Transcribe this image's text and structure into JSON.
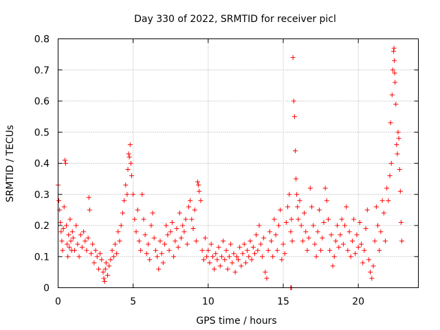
{
  "chart_data": {
    "type": "scatter",
    "title": "Day 330 of 2022, SRMTID for receiver picl",
    "xlabel": "GPS time / hours",
    "ylabel": "SRMTID / TECUs",
    "xlim": [
      0,
      24
    ],
    "ylim": [
      0,
      0.8
    ],
    "xticks": [
      0,
      5,
      10,
      15,
      20
    ],
    "yticks": [
      0,
      0.1,
      0.2,
      0.3,
      0.4,
      0.5,
      0.6,
      0.7,
      0.8
    ],
    "xtick_labels": [
      "0",
      "5",
      "10",
      "15",
      "20"
    ],
    "ytick_labels": [
      "0",
      "0.1",
      "0.2",
      "0.3",
      "0.4",
      "0.5",
      "0.6",
      "0.7",
      "0.8"
    ],
    "grid": true,
    "marker": "+",
    "color": "#ff0000",
    "series": [
      {
        "name": "SRMTID",
        "points": [
          [
            0.0,
            0.33
          ],
          [
            0.05,
            0.28
          ],
          [
            0.1,
            0.25
          ],
          [
            0.15,
            0.21
          ],
          [
            0.2,
            0.18
          ],
          [
            0.25,
            0.15
          ],
          [
            0.3,
            0.12
          ],
          [
            0.35,
            0.19
          ],
          [
            0.4,
            0.26
          ],
          [
            0.45,
            0.41
          ],
          [
            0.5,
            0.4
          ],
          [
            0.55,
            0.2
          ],
          [
            0.6,
            0.14
          ],
          [
            0.65,
            0.1
          ],
          [
            0.7,
            0.17
          ],
          [
            0.75,
            0.13
          ],
          [
            0.8,
            0.22
          ],
          [
            0.85,
            0.15
          ],
          [
            0.9,
            0.12
          ],
          [
            0.95,
            0.18
          ],
          [
            1.0,
            0.16
          ],
          [
            1.1,
            0.12
          ],
          [
            1.2,
            0.2
          ],
          [
            1.3,
            0.14
          ],
          [
            1.4,
            0.1
          ],
          [
            1.5,
            0.17
          ],
          [
            1.6,
            0.13
          ],
          [
            1.7,
            0.18
          ],
          [
            1.8,
            0.15
          ],
          [
            1.9,
            0.12
          ],
          [
            2.0,
            0.16
          ],
          [
            2.05,
            0.29
          ],
          [
            2.1,
            0.25
          ],
          [
            2.2,
            0.11
          ],
          [
            2.3,
            0.14
          ],
          [
            2.4,
            0.08
          ],
          [
            2.5,
            0.12
          ],
          [
            2.6,
            0.1
          ],
          [
            2.7,
            0.06
          ],
          [
            2.8,
            0.11
          ],
          [
            2.9,
            0.09
          ],
          [
            3.0,
            0.05
          ],
          [
            3.05,
            0.03
          ],
          [
            3.1,
            0.02
          ],
          [
            3.15,
            0.06
          ],
          [
            3.2,
            0.08
          ],
          [
            3.3,
            0.04
          ],
          [
            3.4,
            0.07
          ],
          [
            3.5,
            0.09
          ],
          [
            3.6,
            0.12
          ],
          [
            3.7,
            0.1
          ],
          [
            3.8,
            0.14
          ],
          [
            3.9,
            0.11
          ],
          [
            4.0,
            0.18
          ],
          [
            4.1,
            0.15
          ],
          [
            4.2,
            0.2
          ],
          [
            4.3,
            0.24
          ],
          [
            4.4,
            0.28
          ],
          [
            4.5,
            0.33
          ],
          [
            4.6,
            0.3
          ],
          [
            4.65,
            0.38
          ],
          [
            4.7,
            0.43
          ],
          [
            4.75,
            0.42
          ],
          [
            4.8,
            0.46
          ],
          [
            4.85,
            0.4
          ],
          [
            4.9,
            0.36
          ],
          [
            5.0,
            0.3
          ],
          [
            5.1,
            0.22
          ],
          [
            5.2,
            0.18
          ],
          [
            5.3,
            0.25
          ],
          [
            5.4,
            0.15
          ],
          [
            5.5,
            0.12
          ],
          [
            5.6,
            0.3
          ],
          [
            5.7,
            0.22
          ],
          [
            5.8,
            0.17
          ],
          [
            5.9,
            0.11
          ],
          [
            6.0,
            0.14
          ],
          [
            6.1,
            0.09
          ],
          [
            6.2,
            0.2
          ],
          [
            6.3,
            0.24
          ],
          [
            6.4,
            0.16
          ],
          [
            6.5,
            0.12
          ],
          [
            6.6,
            0.1
          ],
          [
            6.7,
            0.06
          ],
          [
            6.8,
            0.15
          ],
          [
            6.9,
            0.11
          ],
          [
            7.0,
            0.08
          ],
          [
            7.1,
            0.14
          ],
          [
            7.2,
            0.2
          ],
          [
            7.3,
            0.17
          ],
          [
            7.4,
            0.12
          ],
          [
            7.5,
            0.18
          ],
          [
            7.6,
            0.21
          ],
          [
            7.7,
            0.1
          ],
          [
            7.8,
            0.15
          ],
          [
            7.9,
            0.19
          ],
          [
            8.0,
            0.13
          ],
          [
            8.1,
            0.24
          ],
          [
            8.2,
            0.16
          ],
          [
            8.3,
            0.2
          ],
          [
            8.4,
            0.18
          ],
          [
            8.5,
            0.22
          ],
          [
            8.6,
            0.14
          ],
          [
            8.7,
            0.26
          ],
          [
            8.8,
            0.28
          ],
          [
            8.9,
            0.22
          ],
          [
            9.0,
            0.19
          ],
          [
            9.1,
            0.25
          ],
          [
            9.2,
            0.15
          ],
          [
            9.3,
            0.34
          ],
          [
            9.35,
            0.33
          ],
          [
            9.4,
            0.31
          ],
          [
            9.5,
            0.28
          ],
          [
            9.6,
            0.12
          ],
          [
            9.7,
            0.09
          ],
          [
            9.8,
            0.16
          ],
          [
            9.9,
            0.1
          ],
          [
            10.0,
            0.12
          ],
          [
            10.1,
            0.08
          ],
          [
            10.2,
            0.14
          ],
          [
            10.3,
            0.1
          ],
          [
            10.4,
            0.06
          ],
          [
            10.5,
            0.11
          ],
          [
            10.6,
            0.09
          ],
          [
            10.7,
            0.13
          ],
          [
            10.8,
            0.07
          ],
          [
            10.9,
            0.1
          ],
          [
            11.0,
            0.15
          ],
          [
            11.1,
            0.09
          ],
          [
            11.2,
            0.12
          ],
          [
            11.3,
            0.06
          ],
          [
            11.4,
            0.1
          ],
          [
            11.5,
            0.14
          ],
          [
            11.6,
            0.08
          ],
          [
            11.7,
            0.11
          ],
          [
            11.8,
            0.05
          ],
          [
            11.9,
            0.1
          ],
          [
            12.0,
            0.09
          ],
          [
            12.1,
            0.13
          ],
          [
            12.2,
            0.07
          ],
          [
            12.3,
            0.11
          ],
          [
            12.4,
            0.14
          ],
          [
            12.5,
            0.08
          ],
          [
            12.6,
            0.12
          ],
          [
            12.7,
            0.1
          ],
          [
            12.8,
            0.15
          ],
          [
            12.9,
            0.09
          ],
          [
            13.0,
            0.13
          ],
          [
            13.1,
            0.11
          ],
          [
            13.2,
            0.17
          ],
          [
            13.3,
            0.12
          ],
          [
            13.4,
            0.2
          ],
          [
            13.5,
            0.14
          ],
          [
            13.6,
            0.1
          ],
          [
            13.7,
            0.16
          ],
          [
            13.8,
            0.05
          ],
          [
            13.9,
            0.03
          ],
          [
            14.0,
            0.12
          ],
          [
            14.1,
            0.18
          ],
          [
            14.2,
            0.15
          ],
          [
            14.3,
            0.1
          ],
          [
            14.4,
            0.22
          ],
          [
            14.5,
            0.17
          ],
          [
            14.6,
            0.12
          ],
          [
            14.7,
            0.2
          ],
          [
            14.8,
            0.25
          ],
          [
            14.9,
            0.09
          ],
          [
            15.0,
            0.14
          ],
          [
            15.1,
            0.11
          ],
          [
            15.2,
            0.21
          ],
          [
            15.3,
            0.26
          ],
          [
            15.4,
            0.3
          ],
          [
            15.5,
            0.18
          ],
          [
            15.55,
            0.22
          ],
          [
            15.6,
            0.15
          ],
          [
            15.65,
            0.74
          ],
          [
            15.7,
            0.6
          ],
          [
            15.75,
            0.55
          ],
          [
            15.8,
            0.44
          ],
          [
            15.85,
            0.35
          ],
          [
            15.9,
            0.3
          ],
          [
            15.95,
            0.26
          ],
          [
            16.0,
            0.22
          ],
          [
            16.1,
            0.28
          ],
          [
            16.2,
            0.2
          ],
          [
            16.3,
            0.15
          ],
          [
            16.4,
            0.24
          ],
          [
            16.5,
            0.18
          ],
          [
            16.6,
            0.12
          ],
          [
            16.7,
            0.16
          ],
          [
            16.8,
            0.32
          ],
          [
            16.9,
            0.26
          ],
          [
            17.0,
            0.2
          ],
          [
            17.1,
            0.14
          ],
          [
            17.2,
            0.1
          ],
          [
            17.3,
            0.18
          ],
          [
            17.4,
            0.25
          ],
          [
            17.5,
            0.12
          ],
          [
            17.6,
            0.16
          ],
          [
            17.7,
            0.21
          ],
          [
            17.8,
            0.32
          ],
          [
            17.9,
            0.28
          ],
          [
            18.0,
            0.22
          ],
          [
            18.1,
            0.12
          ],
          [
            18.2,
            0.17
          ],
          [
            18.3,
            0.07
          ],
          [
            18.4,
            0.1
          ],
          [
            18.5,
            0.15
          ],
          [
            18.6,
            0.2
          ],
          [
            18.7,
            0.13
          ],
          [
            18.8,
            0.17
          ],
          [
            18.9,
            0.22
          ],
          [
            19.0,
            0.14
          ],
          [
            19.1,
            0.2
          ],
          [
            19.2,
            0.26
          ],
          [
            19.3,
            0.12
          ],
          [
            19.4,
            0.18
          ],
          [
            19.5,
            0.1
          ],
          [
            19.6,
            0.15
          ],
          [
            19.7,
            0.22
          ],
          [
            19.8,
            0.11
          ],
          [
            19.9,
            0.17
          ],
          [
            20.0,
            0.13
          ],
          [
            20.1,
            0.21
          ],
          [
            20.2,
            0.14
          ],
          [
            20.3,
            0.08
          ],
          [
            20.4,
            0.12
          ],
          [
            20.5,
            0.19
          ],
          [
            20.6,
            0.25
          ],
          [
            20.7,
            0.09
          ],
          [
            20.8,
            0.05
          ],
          [
            20.9,
            0.03
          ],
          [
            21.0,
            0.07
          ],
          [
            21.1,
            0.15
          ],
          [
            21.2,
            0.26
          ],
          [
            21.3,
            0.2
          ],
          [
            21.4,
            0.12
          ],
          [
            21.5,
            0.18
          ],
          [
            21.6,
            0.28
          ],
          [
            21.7,
            0.24
          ],
          [
            21.8,
            0.15
          ],
          [
            21.9,
            0.32
          ],
          [
            22.0,
            0.28
          ],
          [
            22.1,
            0.36
          ],
          [
            22.15,
            0.53
          ],
          [
            22.2,
            0.4
          ],
          [
            22.25,
            0.62
          ],
          [
            22.3,
            0.7
          ],
          [
            22.35,
            0.76
          ],
          [
            22.4,
            0.73
          ],
          [
            22.45,
            0.66
          ],
          [
            22.5,
            0.59
          ],
          [
            22.55,
            0.46
          ],
          [
            22.6,
            0.43
          ],
          [
            22.65,
            0.5
          ],
          [
            22.7,
            0.48
          ],
          [
            22.75,
            0.38
          ],
          [
            22.8,
            0.31
          ],
          [
            22.85,
            0.21
          ],
          [
            22.9,
            0.15
          ],
          [
            15.5,
            0.0
          ],
          [
            15.55,
            0.0
          ],
          [
            22.38,
            0.77
          ],
          [
            22.42,
            0.69
          ]
        ]
      }
    ]
  }
}
